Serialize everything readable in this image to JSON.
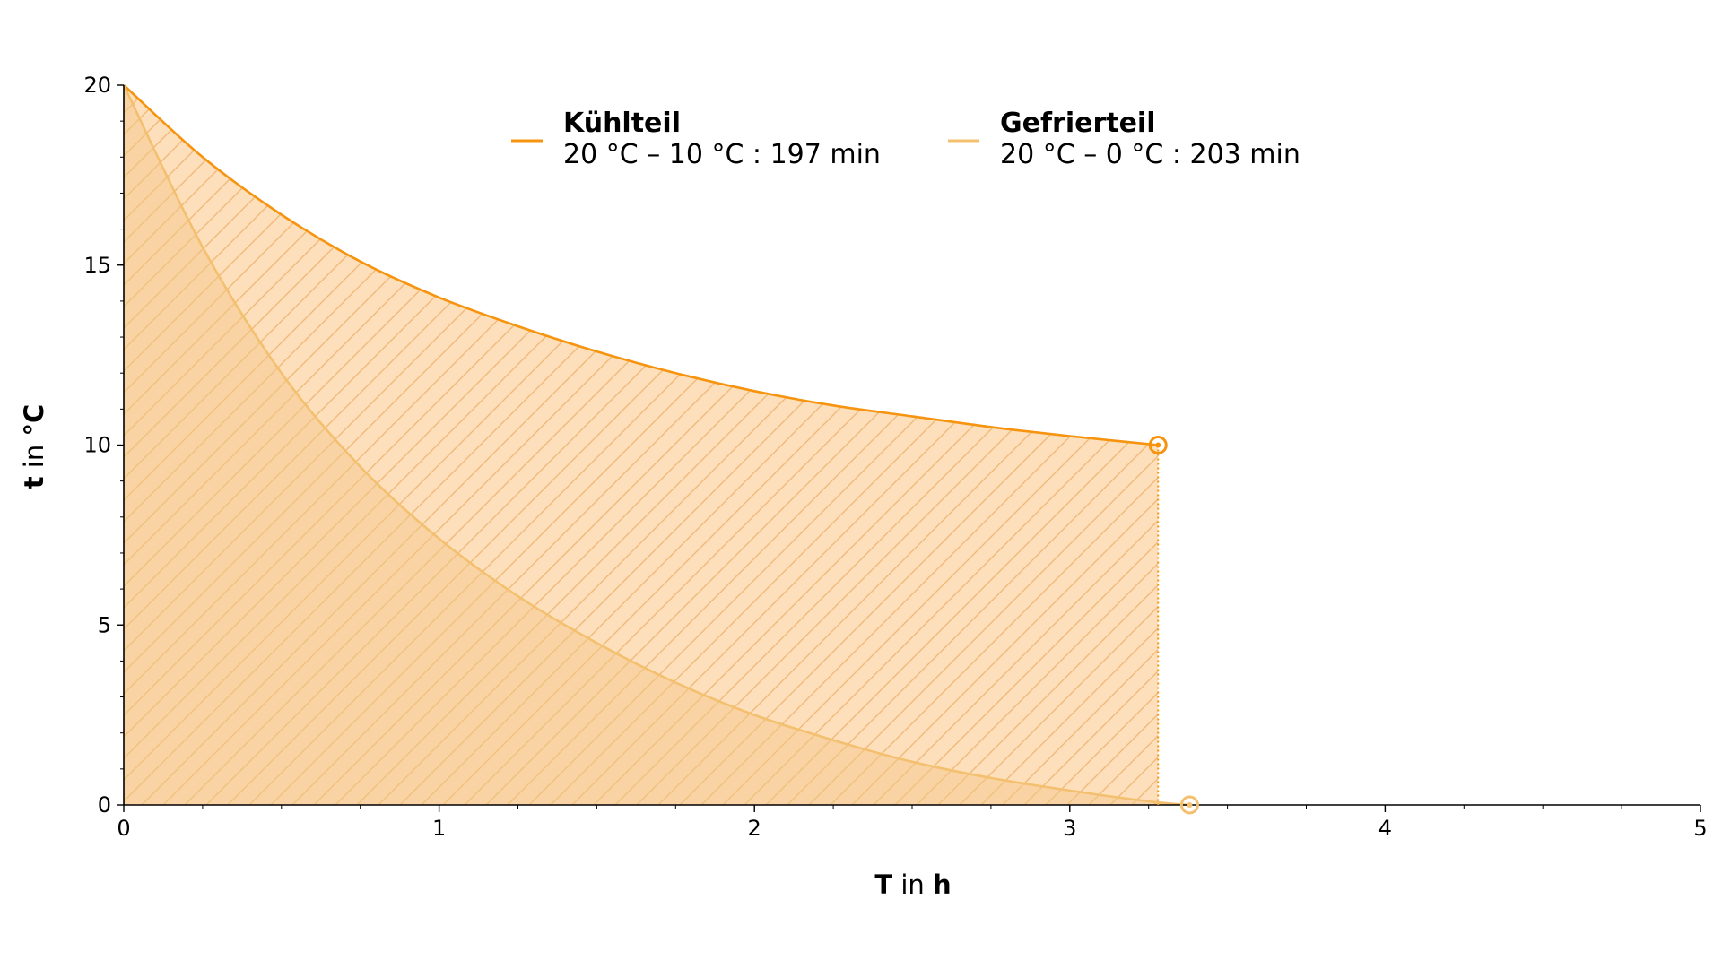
{
  "chart_data": {
    "type": "line",
    "xlabel": {
      "var": "T",
      "mid": " in ",
      "unit": "h"
    },
    "ylabel": {
      "var": "t",
      "mid": " in ",
      "unit": "°C"
    },
    "xlim": [
      0,
      5
    ],
    "ylim": [
      0,
      20
    ],
    "x_ticks": [
      0,
      1,
      2,
      3,
      4,
      5
    ],
    "y_ticks": [
      0,
      5,
      10,
      15,
      20
    ],
    "x_minor_step": 0.25,
    "y_minor_step": 1,
    "grid": false,
    "legend_position": "top-center",
    "fill": "hatched area under each curve",
    "series": [
      {
        "name": "Kühlteil",
        "description": "20 °C – 10 °C : 197 min",
        "color": "#f7940f",
        "x": [
          0,
          0.25,
          0.5,
          0.75,
          1.0,
          1.25,
          1.5,
          1.75,
          2.0,
          2.25,
          2.5,
          2.75,
          3.0,
          3.28
        ],
        "y": [
          20,
          18.0,
          16.4,
          15.1,
          14.1,
          13.3,
          12.6,
          12.0,
          11.5,
          11.1,
          10.8,
          10.5,
          10.25,
          10
        ],
        "end_point": [
          3.28,
          10
        ]
      },
      {
        "name": "Gefrierteil",
        "description": "20 °C – 0 °C : 203 min",
        "color": "#f3c06f",
        "x": [
          0,
          0.25,
          0.5,
          0.75,
          1.0,
          1.25,
          1.5,
          1.75,
          2.0,
          2.25,
          2.5,
          2.75,
          3.0,
          3.25,
          3.38
        ],
        "y": [
          20,
          15.5,
          12.0,
          9.4,
          7.4,
          5.8,
          4.5,
          3.4,
          2.5,
          1.8,
          1.2,
          0.75,
          0.4,
          0.1,
          0
        ],
        "end_point": [
          3.38,
          0
        ]
      }
    ]
  }
}
